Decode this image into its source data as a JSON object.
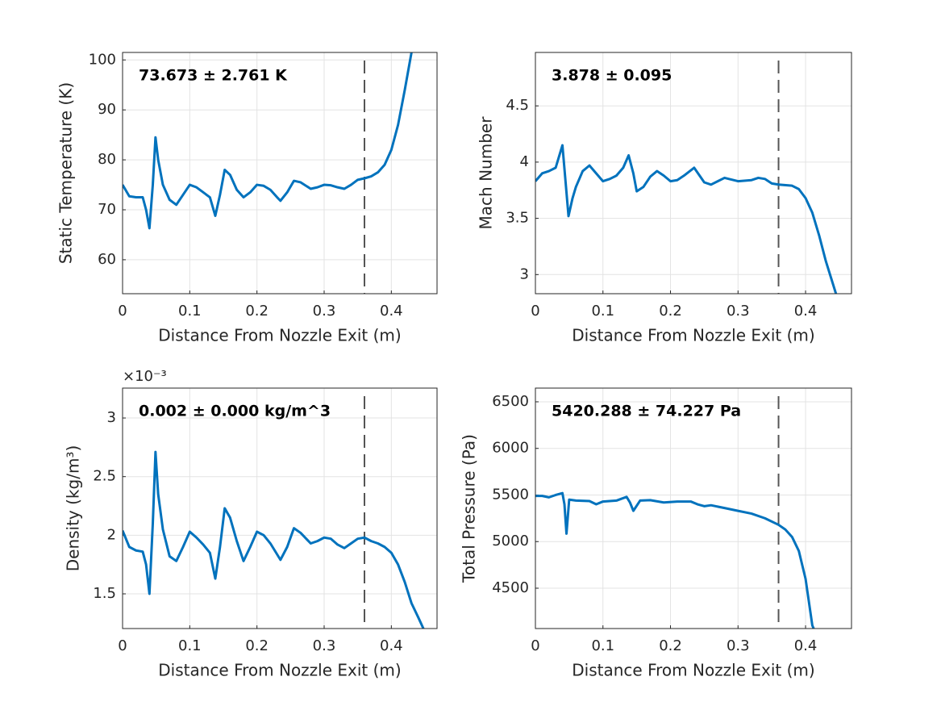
{
  "chart_data": [
    {
      "type": "line",
      "ylabel": "Static Temperature (K)",
      "xlabel": "Distance From Nozzle Exit (m)",
      "annotation": "73.673 ± 2.761 K",
      "xlim": [
        0,
        0.468
      ],
      "ylim": [
        53.2,
        101.5
      ],
      "xticks": [
        0,
        0.1,
        0.2,
        0.3,
        0.4
      ],
      "yticks": [
        60,
        70,
        80,
        90,
        100
      ],
      "grid": true,
      "color": "#0072bd",
      "vline_x": 0.36,
      "x": [
        0,
        0.01,
        0.02,
        0.03,
        0.035,
        0.04,
        0.045,
        0.049,
        0.053,
        0.06,
        0.07,
        0.08,
        0.09,
        0.1,
        0.11,
        0.12,
        0.13,
        0.138,
        0.145,
        0.152,
        0.16,
        0.17,
        0.18,
        0.19,
        0.2,
        0.21,
        0.22,
        0.23,
        0.235,
        0.245,
        0.255,
        0.265,
        0.28,
        0.29,
        0.3,
        0.31,
        0.32,
        0.33,
        0.34,
        0.35,
        0.36,
        0.37,
        0.38,
        0.39,
        0.4,
        0.41,
        0.42,
        0.43
      ],
      "values": [
        75,
        72.7,
        72.5,
        72.5,
        70,
        66.3,
        75,
        84.5,
        80,
        75,
        72,
        71,
        73,
        75,
        74.5,
        73.5,
        72.5,
        68.8,
        73,
        78,
        77,
        74,
        72.5,
        73.5,
        75,
        74.8,
        74,
        72.5,
        71.8,
        73.5,
        75.8,
        75.5,
        74.2,
        74.5,
        75,
        74.9,
        74.5,
        74.2,
        75,
        76,
        76.3,
        76.7,
        77.5,
        79,
        82,
        87,
        94,
        101.5
      ]
    },
    {
      "type": "line",
      "ylabel": "Mach Number",
      "xlabel": "Distance From Nozzle Exit (m)",
      "annotation": "3.878 ± 0.095",
      "xlim": [
        0,
        0.468
      ],
      "ylim": [
        2.83,
        4.975
      ],
      "xticks": [
        0,
        0.1,
        0.2,
        0.3,
        0.4
      ],
      "yticks": [
        3,
        3.5,
        4,
        4.5
      ],
      "grid": true,
      "color": "#0072bd",
      "vline_x": 0.36,
      "x": [
        0,
        0.01,
        0.02,
        0.03,
        0.035,
        0.04,
        0.045,
        0.049,
        0.055,
        0.06,
        0.07,
        0.08,
        0.09,
        0.1,
        0.11,
        0.12,
        0.13,
        0.138,
        0.145,
        0.15,
        0.16,
        0.17,
        0.18,
        0.19,
        0.2,
        0.21,
        0.22,
        0.235,
        0.25,
        0.26,
        0.27,
        0.28,
        0.3,
        0.32,
        0.33,
        0.34,
        0.35,
        0.36,
        0.38,
        0.39,
        0.4,
        0.41,
        0.42,
        0.43,
        0.445
      ],
      "values": [
        3.83,
        3.9,
        3.92,
        3.95,
        4.05,
        4.15,
        3.8,
        3.52,
        3.68,
        3.78,
        3.92,
        3.97,
        3.9,
        3.83,
        3.85,
        3.88,
        3.95,
        4.06,
        3.9,
        3.74,
        3.78,
        3.87,
        3.92,
        3.88,
        3.83,
        3.84,
        3.88,
        3.95,
        3.82,
        3.8,
        3.83,
        3.86,
        3.83,
        3.84,
        3.86,
        3.85,
        3.81,
        3.8,
        3.79,
        3.76,
        3.68,
        3.55,
        3.35,
        3.12,
        2.83
      ]
    },
    {
      "type": "line",
      "ylabel": "Density (kg/m³)",
      "xlabel": "Distance From Nozzle Exit (m)",
      "annotation": "0.002 ± 0.000 kg/m^3",
      "y_multiplier": "×10⁻³",
      "xlim": [
        0,
        0.468
      ],
      "ylim": [
        1.204,
        3.255
      ],
      "xticks": [
        0,
        0.1,
        0.2,
        0.3,
        0.4
      ],
      "yticks": [
        1.5,
        2,
        2.5,
        3
      ],
      "grid": true,
      "color": "#0072bd",
      "vline_x": 0.36,
      "x": [
        0,
        0.01,
        0.02,
        0.03,
        0.035,
        0.04,
        0.045,
        0.049,
        0.053,
        0.06,
        0.07,
        0.08,
        0.09,
        0.1,
        0.11,
        0.12,
        0.13,
        0.138,
        0.145,
        0.152,
        0.16,
        0.17,
        0.18,
        0.19,
        0.2,
        0.21,
        0.22,
        0.235,
        0.245,
        0.255,
        0.265,
        0.28,
        0.29,
        0.3,
        0.31,
        0.32,
        0.33,
        0.34,
        0.35,
        0.36,
        0.37,
        0.38,
        0.39,
        0.4,
        0.41,
        0.42,
        0.43,
        0.44,
        0.448
      ],
      "values": [
        2.04,
        1.9,
        1.87,
        1.86,
        1.75,
        1.5,
        2.1,
        2.71,
        2.35,
        2.05,
        1.82,
        1.78,
        1.9,
        2.03,
        1.98,
        1.92,
        1.85,
        1.63,
        1.9,
        2.23,
        2.15,
        1.95,
        1.78,
        1.9,
        2.03,
        2,
        1.93,
        1.79,
        1.9,
        2.06,
        2.02,
        1.93,
        1.95,
        1.98,
        1.97,
        1.92,
        1.89,
        1.93,
        1.97,
        1.98,
        1.95,
        1.93,
        1.9,
        1.85,
        1.75,
        1.6,
        1.42,
        1.3,
        1.2
      ]
    },
    {
      "type": "line",
      "ylabel": "Total Pressure (Pa)",
      "xlabel": "Distance From Nozzle Exit (m)",
      "annotation": "5420.288 ± 74.227 Pa",
      "xlim": [
        0,
        0.468
      ],
      "ylim": [
        4067,
        6647
      ],
      "xticks": [
        0,
        0.1,
        0.2,
        0.3,
        0.4
      ],
      "yticks": [
        4500,
        5000,
        5500,
        6000,
        6500
      ],
      "grid": true,
      "color": "#0072bd",
      "vline_x": 0.36,
      "x": [
        0,
        0.01,
        0.02,
        0.03,
        0.04,
        0.043,
        0.046,
        0.05,
        0.06,
        0.08,
        0.09,
        0.1,
        0.12,
        0.135,
        0.14,
        0.145,
        0.155,
        0.17,
        0.19,
        0.21,
        0.23,
        0.24,
        0.25,
        0.26,
        0.28,
        0.3,
        0.32,
        0.34,
        0.36,
        0.37,
        0.38,
        0.39,
        0.4,
        0.41,
        0.412
      ],
      "values": [
        5490,
        5490,
        5475,
        5500,
        5520,
        5400,
        5085,
        5450,
        5440,
        5435,
        5400,
        5430,
        5440,
        5480,
        5420,
        5330,
        5440,
        5445,
        5420,
        5430,
        5430,
        5400,
        5380,
        5390,
        5360,
        5330,
        5300,
        5250,
        5180,
        5130,
        5050,
        4900,
        4600,
        4100,
        4067
      ]
    }
  ]
}
